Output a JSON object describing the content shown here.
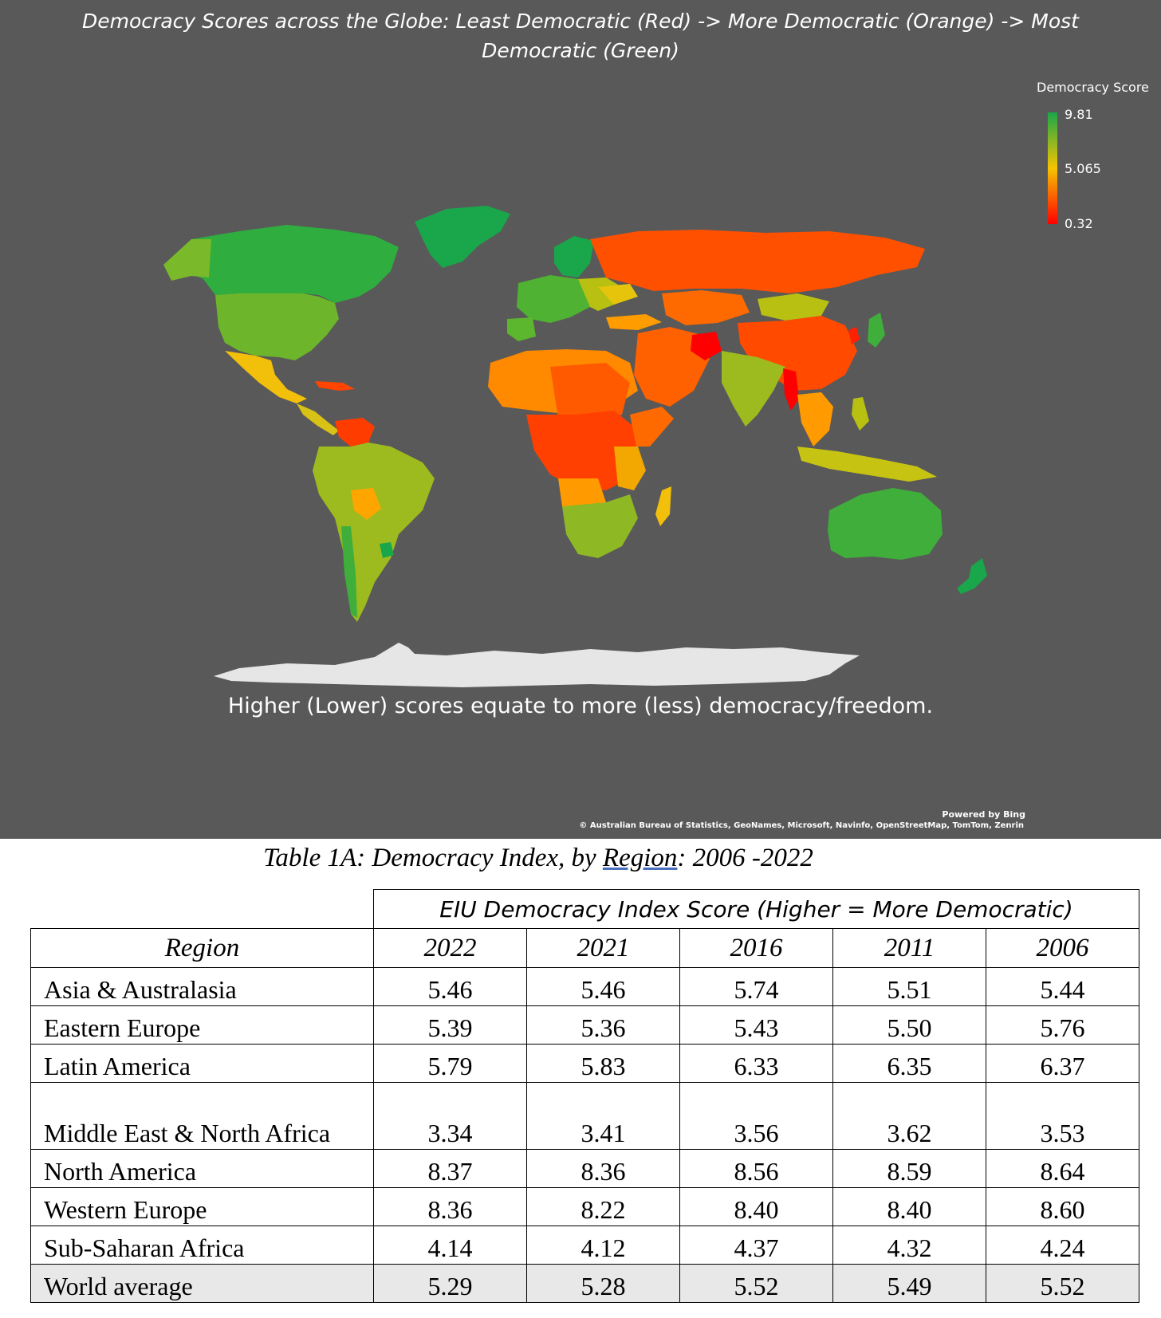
{
  "map": {
    "title": "Democracy Scores across the Globe: Least Democratic (Red) -> More Democratic (Orange) -> Most Democratic (Green)",
    "legend": {
      "title": "Democracy Score",
      "max": "9.81",
      "mid": "5.065",
      "min": "0.32",
      "colors": {
        "max": "#1aa64a",
        "mid": "#f5c400",
        "min": "#ff0000"
      }
    },
    "note": "Higher (Lower) scores equate to more (less) democracy/freedom.",
    "powered_by": "Powered by Bing",
    "attribution": "© Australian Bureau of Statistics, GeoNames, Microsoft, Navinfo, OpenStreetMap, TomTom, Zenrin"
  },
  "table": {
    "caption_prefix": "Table 1A: Democracy Index, by ",
    "caption_link": "Region",
    "caption_suffix": ": 2006 -2022",
    "super_header": "EIU Democracy Index Score (Higher = More Democratic)",
    "region_header": "Region",
    "years": [
      "2022",
      "2021",
      "2016",
      "2011",
      "2006"
    ],
    "rows": [
      {
        "region": "Asia & Australasia",
        "values": [
          "5.46",
          "5.46",
          "5.74",
          "5.51",
          "5.44"
        ]
      },
      {
        "region": "Eastern Europe",
        "values": [
          "5.39",
          "5.36",
          "5.43",
          "5.50",
          "5.76"
        ]
      },
      {
        "region": "Latin America",
        "values": [
          "5.79",
          "5.83",
          "6.33",
          "6.35",
          "6.37"
        ]
      },
      {
        "region": "Middle East & North Africa",
        "values": [
          "3.34",
          "3.41",
          "3.56",
          "3.62",
          "3.53"
        ]
      },
      {
        "region": "North America",
        "values": [
          "8.37",
          "8.36",
          "8.56",
          "8.59",
          "8.64"
        ]
      },
      {
        "region": "Western Europe",
        "values": [
          "8.36",
          "8.22",
          "8.40",
          "8.40",
          "8.60"
        ]
      },
      {
        "region": "Sub-Saharan Africa",
        "values": [
          "4.14",
          "4.12",
          "4.37",
          "4.32",
          "4.24"
        ]
      },
      {
        "region": "World average",
        "values": [
          "5.29",
          "5.28",
          "5.52",
          "5.49",
          "5.52"
        ]
      }
    ]
  }
}
